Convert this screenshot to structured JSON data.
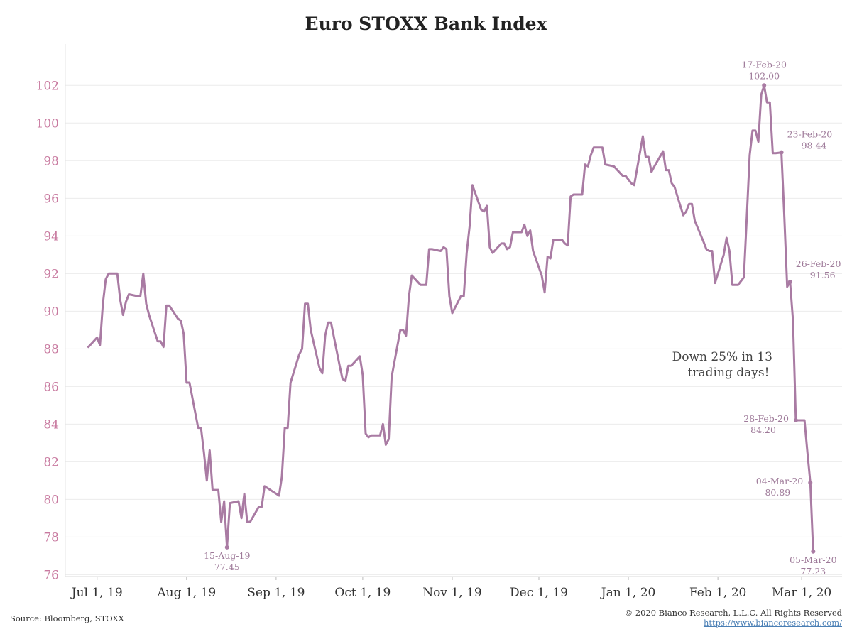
{
  "chart_data": {
    "type": "line",
    "title": "Euro STOXX Bank Index",
    "xlabel": "",
    "ylabel": "",
    "ylim": [
      75.9,
      104.2
    ],
    "yticks": [
      76,
      78,
      80,
      82,
      84,
      86,
      88,
      90,
      92,
      94,
      96,
      98,
      100,
      102
    ],
    "xlim": [
      "2019-06-20",
      "2020-03-15"
    ],
    "xticks": [
      {
        "date": "2019-07-01",
        "label": "Jul 1, 19"
      },
      {
        "date": "2019-08-01",
        "label": "Aug 1, 19"
      },
      {
        "date": "2019-09-01",
        "label": "Sep 1, 19"
      },
      {
        "date": "2019-10-01",
        "label": "Oct 1, 19"
      },
      {
        "date": "2019-11-01",
        "label": "Nov 1, 19"
      },
      {
        "date": "2019-12-01",
        "label": "Dec 1, 19"
      },
      {
        "date": "2020-01-01",
        "label": "Jan 1, 20"
      },
      {
        "date": "2020-02-01",
        "label": "Feb 1, 20"
      },
      {
        "date": "2020-03-01",
        "label": "Mar 1, 20"
      }
    ],
    "grid": {
      "horizontal": true,
      "vertical": false
    },
    "colors": {
      "line": "#a97ba3",
      "ytick": "#c8799f",
      "annotation": "#9e7a99",
      "grid": "#ececec"
    },
    "series": [
      {
        "color": "#a97ba3",
        "points": [
          [
            "2019-06-28",
            88.1
          ],
          [
            "2019-07-01",
            88.6
          ],
          [
            "2019-07-02",
            88.2
          ],
          [
            "2019-07-03",
            90.4
          ],
          [
            "2019-07-04",
            91.7
          ],
          [
            "2019-07-05",
            92.0
          ],
          [
            "2019-07-08",
            92.0
          ],
          [
            "2019-07-09",
            90.6
          ],
          [
            "2019-07-10",
            89.8
          ],
          [
            "2019-07-11",
            90.5
          ],
          [
            "2019-07-12",
            90.9
          ],
          [
            "2019-07-15",
            90.8
          ],
          [
            "2019-07-16",
            90.8
          ],
          [
            "2019-07-17",
            92.0
          ],
          [
            "2019-07-18",
            90.4
          ],
          [
            "2019-07-19",
            89.8
          ],
          [
            "2019-07-22",
            88.4
          ],
          [
            "2019-07-23",
            88.4
          ],
          [
            "2019-07-24",
            88.1
          ],
          [
            "2019-07-25",
            90.3
          ],
          [
            "2019-07-26",
            90.3
          ],
          [
            "2019-07-29",
            89.6
          ],
          [
            "2019-07-30",
            89.5
          ],
          [
            "2019-07-31",
            88.8
          ],
          [
            "2019-08-01",
            86.2
          ],
          [
            "2019-08-02",
            86.2
          ],
          [
            "2019-08-05",
            83.8
          ],
          [
            "2019-08-06",
            83.8
          ],
          [
            "2019-08-07",
            82.5
          ],
          [
            "2019-08-08",
            81.0
          ],
          [
            "2019-08-09",
            82.6
          ],
          [
            "2019-08-10",
            80.5
          ],
          [
            "2019-08-12",
            80.5
          ],
          [
            "2019-08-13",
            78.8
          ],
          [
            "2019-08-14",
            79.9
          ],
          [
            "2019-08-15",
            77.45
          ],
          [
            "2019-08-16",
            79.8
          ],
          [
            "2019-08-19",
            79.9
          ],
          [
            "2019-08-20",
            79.0
          ],
          [
            "2019-08-21",
            80.3
          ],
          [
            "2019-08-22",
            78.8
          ],
          [
            "2019-08-23",
            78.8
          ],
          [
            "2019-08-26",
            79.6
          ],
          [
            "2019-08-27",
            79.6
          ],
          [
            "2019-08-28",
            80.7
          ],
          [
            "2019-08-29",
            80.6
          ],
          [
            "2019-08-30",
            80.5
          ],
          [
            "2019-09-02",
            80.2
          ],
          [
            "2019-09-03",
            81.2
          ],
          [
            "2019-09-04",
            83.8
          ],
          [
            "2019-09-05",
            83.8
          ],
          [
            "2019-09-06",
            86.2
          ],
          [
            "2019-09-09",
            87.7
          ],
          [
            "2019-09-10",
            88.0
          ],
          [
            "2019-09-11",
            90.4
          ],
          [
            "2019-09-12",
            90.4
          ],
          [
            "2019-09-13",
            89.0
          ],
          [
            "2019-09-16",
            87.0
          ],
          [
            "2019-09-17",
            86.7
          ],
          [
            "2019-09-18",
            88.7
          ],
          [
            "2019-09-19",
            89.4
          ],
          [
            "2019-09-20",
            89.4
          ],
          [
            "2019-09-23",
            87.1
          ],
          [
            "2019-09-24",
            86.4
          ],
          [
            "2019-09-25",
            86.3
          ],
          [
            "2019-09-26",
            87.1
          ],
          [
            "2019-09-27",
            87.1
          ],
          [
            "2019-09-30",
            87.6
          ],
          [
            "2019-10-01",
            86.6
          ],
          [
            "2019-10-02",
            83.5
          ],
          [
            "2019-10-03",
            83.3
          ],
          [
            "2019-10-04",
            83.4
          ],
          [
            "2019-10-07",
            83.4
          ],
          [
            "2019-10-08",
            84.0
          ],
          [
            "2019-10-09",
            82.9
          ],
          [
            "2019-10-10",
            83.2
          ],
          [
            "2019-10-11",
            86.5
          ],
          [
            "2019-10-14",
            89.0
          ],
          [
            "2019-10-15",
            89.0
          ],
          [
            "2019-10-16",
            88.7
          ],
          [
            "2019-10-17",
            90.8
          ],
          [
            "2019-10-18",
            91.9
          ],
          [
            "2019-10-21",
            91.4
          ],
          [
            "2019-10-22",
            91.4
          ],
          [
            "2019-10-23",
            91.4
          ],
          [
            "2019-10-24",
            93.3
          ],
          [
            "2019-10-25",
            93.3
          ],
          [
            "2019-10-28",
            93.2
          ],
          [
            "2019-10-29",
            93.4
          ],
          [
            "2019-10-30",
            93.3
          ],
          [
            "2019-10-31",
            90.8
          ],
          [
            "2019-11-01",
            89.9
          ],
          [
            "2019-11-04",
            90.8
          ],
          [
            "2019-11-05",
            90.8
          ],
          [
            "2019-11-06",
            93.1
          ],
          [
            "2019-11-07",
            94.5
          ],
          [
            "2019-11-08",
            96.7
          ],
          [
            "2019-11-11",
            95.4
          ],
          [
            "2019-11-12",
            95.3
          ],
          [
            "2019-11-13",
            95.6
          ],
          [
            "2019-11-14",
            93.4
          ],
          [
            "2019-11-15",
            93.1
          ],
          [
            "2019-11-18",
            93.6
          ],
          [
            "2019-11-19",
            93.6
          ],
          [
            "2019-11-20",
            93.3
          ],
          [
            "2019-11-21",
            93.4
          ],
          [
            "2019-11-22",
            94.2
          ],
          [
            "2019-11-25",
            94.2
          ],
          [
            "2019-11-26",
            94.6
          ],
          [
            "2019-11-27",
            94.0
          ],
          [
            "2019-11-28",
            94.3
          ],
          [
            "2019-11-29",
            93.2
          ],
          [
            "2019-12-02",
            91.9
          ],
          [
            "2019-12-03",
            91.0
          ],
          [
            "2019-12-04",
            92.9
          ],
          [
            "2019-12-05",
            92.8
          ],
          [
            "2019-12-06",
            93.8
          ],
          [
            "2019-12-09",
            93.8
          ],
          [
            "2019-12-10",
            93.6
          ],
          [
            "2019-12-11",
            93.5
          ],
          [
            "2019-12-12",
            96.1
          ],
          [
            "2019-12-13",
            96.2
          ],
          [
            "2019-12-16",
            96.2
          ],
          [
            "2019-12-17",
            97.8
          ],
          [
            "2019-12-18",
            97.7
          ],
          [
            "2019-12-19",
            98.3
          ],
          [
            "2019-12-20",
            98.7
          ],
          [
            "2019-12-23",
            98.7
          ],
          [
            "2019-12-24",
            97.8
          ],
          [
            "2019-12-27",
            97.7
          ],
          [
            "2019-12-30",
            97.2
          ],
          [
            "2019-12-31",
            97.2
          ],
          [
            "2020-01-02",
            96.8
          ],
          [
            "2020-01-03",
            96.7
          ],
          [
            "2020-01-06",
            99.3
          ],
          [
            "2020-01-07",
            98.2
          ],
          [
            "2020-01-08",
            98.2
          ],
          [
            "2020-01-09",
            97.4
          ],
          [
            "2020-01-10",
            97.7
          ],
          [
            "2020-01-13",
            98.5
          ],
          [
            "2020-01-14",
            97.5
          ],
          [
            "2020-01-15",
            97.5
          ],
          [
            "2020-01-16",
            96.8
          ],
          [
            "2020-01-17",
            96.6
          ],
          [
            "2020-01-20",
            95.1
          ],
          [
            "2020-01-21",
            95.3
          ],
          [
            "2020-01-22",
            95.7
          ],
          [
            "2020-01-23",
            95.7
          ],
          [
            "2020-01-24",
            94.8
          ],
          [
            "2020-01-27",
            93.7
          ],
          [
            "2020-01-28",
            93.3
          ],
          [
            "2020-01-29",
            93.2
          ],
          [
            "2020-01-30",
            93.2
          ],
          [
            "2020-01-31",
            91.5
          ],
          [
            "2020-02-03",
            93.0
          ],
          [
            "2020-02-04",
            93.9
          ],
          [
            "2020-02-05",
            93.2
          ],
          [
            "2020-02-06",
            91.4
          ],
          [
            "2020-02-07",
            91.4
          ],
          [
            "2020-02-08",
            91.4
          ],
          [
            "2020-02-10",
            91.8
          ],
          [
            "2020-02-11",
            95.0
          ],
          [
            "2020-02-12",
            98.3
          ],
          [
            "2020-02-13",
            99.6
          ],
          [
            "2020-02-14",
            99.6
          ],
          [
            "2020-02-15",
            99.0
          ],
          [
            "2020-02-16",
            101.5
          ],
          [
            "2020-02-17",
            102.0
          ],
          [
            "2020-02-18",
            101.1
          ],
          [
            "2020-02-19",
            101.1
          ],
          [
            "2020-02-20",
            98.4
          ],
          [
            "2020-02-21",
            98.4
          ],
          [
            "2020-02-23",
            98.44
          ],
          [
            "2020-02-24",
            95.0
          ],
          [
            "2020-02-25",
            91.3
          ],
          [
            "2020-02-26",
            91.56
          ],
          [
            "2020-02-27",
            89.5
          ],
          [
            "2020-02-28",
            84.2
          ],
          [
            "2020-03-02",
            84.2
          ],
          [
            "2020-03-03",
            82.5
          ],
          [
            "2020-03-04",
            80.89
          ],
          [
            "2020-03-05",
            77.23
          ]
        ]
      }
    ],
    "annotations": [
      {
        "date": "2019-08-15",
        "value": 77.45,
        "line1": "15-Aug-19",
        "line2": "77.45",
        "pos": "below"
      },
      {
        "date": "2020-02-17",
        "value": 102.0,
        "line1": "17-Feb-20",
        "line2": "102.00",
        "pos": "above"
      },
      {
        "date": "2020-02-23",
        "value": 98.44,
        "line1": "23-Feb-20",
        "line2": "98.44",
        "pos": "right"
      },
      {
        "date": "2020-02-26",
        "value": 91.56,
        "line1": "26-Feb-20",
        "line2": "91.56",
        "pos": "right"
      },
      {
        "date": "2020-02-28",
        "value": 84.2,
        "line1": "28-Feb-20",
        "line2": "84.20",
        "pos": "left"
      },
      {
        "date": "2020-03-04",
        "value": 80.89,
        "line1": "04-Mar-20",
        "line2": "80.89",
        "pos": "left"
      },
      {
        "date": "2020-03-05",
        "value": 77.23,
        "line1": "05-Mar-20",
        "line2": "77.23",
        "pos": "below"
      }
    ],
    "callout": [
      "Down 25% in 13",
      "trading days!"
    ]
  },
  "footer": {
    "source": "Source: Bloomberg, STOXX",
    "copyright": "© 2020 Bianco Research, L.L.C. All Rights Reserved",
    "website": "https://www.biancoresearch.com/"
  }
}
